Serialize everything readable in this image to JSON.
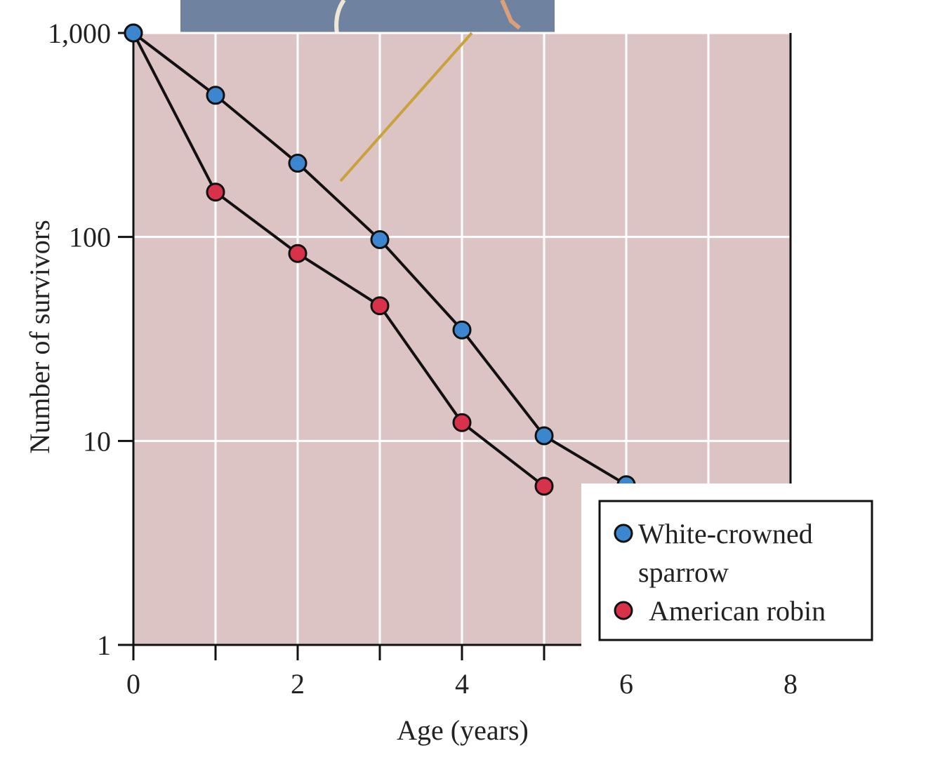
{
  "chart_data": {
    "type": "line",
    "xlabel": "Age (years)",
    "ylabel": "Number of survivors",
    "xlim": [
      0,
      8
    ],
    "ylim": [
      1,
      1000
    ],
    "yscale": "log",
    "xticks": [
      0,
      2,
      4,
      6,
      8
    ],
    "xtick_labels": [
      "0",
      "2",
      "4",
      "6",
      "8"
    ],
    "yticks": [
      1,
      10,
      100,
      1000
    ],
    "ytick_labels": [
      "1",
      "10",
      "100",
      "1,000"
    ],
    "grid": true,
    "legend_position": "bottom-right",
    "plot_background": "#dcc4c4",
    "series": [
      {
        "name": "White-crowned sparrow",
        "color": "#3b86cf",
        "x": [
          0,
          1,
          2,
          3,
          4,
          5,
          6
        ],
        "values": [
          1000,
          495,
          230,
          97,
          35,
          10.6,
          6.1
        ]
      },
      {
        "name": "American robin",
        "color": "#d8324a",
        "x": [
          0,
          1,
          2,
          3,
          4,
          5
        ],
        "values": [
          1000,
          166,
          83,
          46,
          12.3,
          6.0
        ]
      }
    ],
    "legend": {
      "line1": "White-crowned",
      "line2": "sparrow",
      "line3": "American robin"
    }
  }
}
